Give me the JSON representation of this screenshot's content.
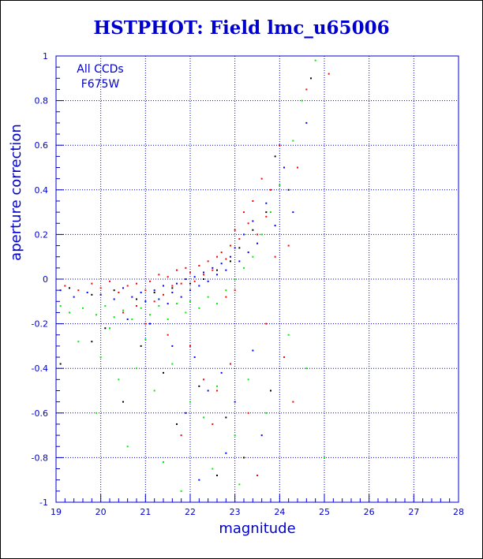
{
  "chart_data": {
    "type": "scatter",
    "title": "HSTPHOT: Field lmc_u65006",
    "xlabel": "magnitude",
    "ylabel": "aperture correction",
    "xlim": [
      19,
      28
    ],
    "ylim": [
      -1,
      1
    ],
    "xticks": [
      "19",
      "20",
      "21",
      "22",
      "23",
      "24",
      "25",
      "26",
      "27",
      "28"
    ],
    "yticks": [
      "-1",
      "-0.8",
      "-0.6",
      "-0.4",
      "-0.2",
      "0",
      "0.2",
      "0.4",
      "0.6",
      "0.8",
      "1"
    ],
    "grid": true,
    "legend": {
      "placement": "top-left",
      "lines": [
        "All CCDs",
        "F675W"
      ]
    },
    "series": [
      {
        "color": "#ff0000",
        "points": [
          [
            19.2,
            -0.03
          ],
          [
            19.5,
            -0.05
          ],
          [
            19.8,
            -0.02
          ],
          [
            20.0,
            -0.04
          ],
          [
            20.2,
            -0.01
          ],
          [
            20.4,
            -0.06
          ],
          [
            20.6,
            -0.03
          ],
          [
            20.8,
            -0.02
          ],
          [
            21.0,
            -0.05
          ],
          [
            21.1,
            -0.01
          ],
          [
            21.3,
            0.02
          ],
          [
            21.4,
            -0.07
          ],
          [
            21.5,
            0.01
          ],
          [
            21.6,
            -0.03
          ],
          [
            21.7,
            0.04
          ],
          [
            21.8,
            -0.02
          ],
          [
            21.9,
            0.05
          ],
          [
            22.0,
            0.03
          ],
          [
            22.1,
            -0.01
          ],
          [
            22.2,
            0.06
          ],
          [
            22.3,
            0.02
          ],
          [
            22.4,
            0.08
          ],
          [
            22.5,
            0.04
          ],
          [
            22.6,
            0.1
          ],
          [
            22.7,
            0.12
          ],
          [
            22.8,
            0.09
          ],
          [
            22.9,
            0.15
          ],
          [
            23.0,
            0.22
          ],
          [
            23.1,
            0.18
          ],
          [
            23.2,
            0.3
          ],
          [
            23.3,
            0.25
          ],
          [
            23.4,
            0.35
          ],
          [
            23.5,
            0.2
          ],
          [
            23.6,
            0.45
          ],
          [
            23.7,
            0.28
          ],
          [
            23.8,
            0.4
          ],
          [
            23.9,
            0.1
          ],
          [
            24.0,
            0.6
          ],
          [
            24.2,
            0.15
          ],
          [
            24.4,
            0.5
          ],
          [
            24.6,
            0.85
          ],
          [
            25.1,
            0.92
          ],
          [
            20.5,
            -0.15
          ],
          [
            21.0,
            -0.2
          ],
          [
            21.5,
            -0.25
          ],
          [
            22.0,
            -0.3
          ],
          [
            22.3,
            -0.45
          ],
          [
            22.6,
            -0.5
          ],
          [
            22.9,
            -0.38
          ],
          [
            23.3,
            -0.6
          ],
          [
            23.7,
            -0.2
          ],
          [
            24.1,
            -0.35
          ],
          [
            21.8,
            -0.7
          ],
          [
            22.5,
            -0.65
          ],
          [
            23.5,
            -0.88
          ],
          [
            24.3,
            -0.55
          ],
          [
            20.8,
            -0.12
          ],
          [
            21.2,
            -0.1
          ],
          [
            22.8,
            -0.08
          ],
          [
            23.0,
            -0.05
          ]
        ]
      },
      {
        "color": "#0000ff",
        "points": [
          [
            19.1,
            -0.05
          ],
          [
            19.4,
            -0.08
          ],
          [
            19.7,
            -0.06
          ],
          [
            20.0,
            -0.07
          ],
          [
            20.3,
            -0.09
          ],
          [
            20.5,
            -0.04
          ],
          [
            20.7,
            -0.08
          ],
          [
            20.9,
            -0.06
          ],
          [
            21.0,
            -0.1
          ],
          [
            21.2,
            -0.05
          ],
          [
            21.3,
            -0.09
          ],
          [
            21.4,
            -0.03
          ],
          [
            21.5,
            -0.11
          ],
          [
            21.6,
            -0.06
          ],
          [
            21.7,
            -0.02
          ],
          [
            21.8,
            -0.08
          ],
          [
            21.9,
            0.0
          ],
          [
            22.0,
            -0.05
          ],
          [
            22.1,
            0.01
          ],
          [
            22.2,
            -0.03
          ],
          [
            22.3,
            0.03
          ],
          [
            22.4,
            -0.01
          ],
          [
            22.5,
            0.05
          ],
          [
            22.6,
            0.02
          ],
          [
            22.7,
            0.07
          ],
          [
            22.8,
            0.04
          ],
          [
            22.9,
            0.1
          ],
          [
            23.0,
            0.14
          ],
          [
            23.1,
            0.08
          ],
          [
            23.2,
            0.2
          ],
          [
            23.3,
            0.12
          ],
          [
            23.4,
            0.26
          ],
          [
            23.5,
            0.16
          ],
          [
            23.7,
            0.34
          ],
          [
            23.9,
            0.24
          ],
          [
            24.1,
            0.5
          ],
          [
            24.3,
            0.3
          ],
          [
            24.6,
            0.7
          ],
          [
            21.1,
            -0.2
          ],
          [
            21.6,
            -0.3
          ],
          [
            22.1,
            -0.35
          ],
          [
            22.4,
            -0.5
          ],
          [
            22.7,
            -0.42
          ],
          [
            23.0,
            -0.55
          ],
          [
            23.4,
            -0.32
          ],
          [
            21.9,
            -0.6
          ],
          [
            22.8,
            -0.78
          ],
          [
            23.6,
            -0.7
          ],
          [
            20.6,
            -0.18
          ],
          [
            22.2,
            -0.9
          ]
        ]
      },
      {
        "color": "#00ee00",
        "points": [
          [
            19.1,
            -0.12
          ],
          [
            19.3,
            -0.15
          ],
          [
            19.6,
            -0.13
          ],
          [
            19.9,
            -0.16
          ],
          [
            20.1,
            -0.12
          ],
          [
            20.3,
            -0.17
          ],
          [
            20.5,
            -0.14
          ],
          [
            20.7,
            -0.18
          ],
          [
            20.9,
            -0.13
          ],
          [
            21.1,
            -0.16
          ],
          [
            21.3,
            -0.12
          ],
          [
            21.5,
            -0.18
          ],
          [
            21.7,
            -0.11
          ],
          [
            21.9,
            -0.15
          ],
          [
            22.0,
            -0.1
          ],
          [
            22.2,
            -0.13
          ],
          [
            22.4,
            -0.08
          ],
          [
            22.6,
            -0.11
          ],
          [
            22.8,
            -0.05
          ],
          [
            23.0,
            0.0
          ],
          [
            23.2,
            0.05
          ],
          [
            23.4,
            0.1
          ],
          [
            23.6,
            0.2
          ],
          [
            23.8,
            0.3
          ],
          [
            24.0,
            0.42
          ],
          [
            24.3,
            0.62
          ],
          [
            24.5,
            0.8
          ],
          [
            24.8,
            0.98
          ],
          [
            19.5,
            -0.28
          ],
          [
            20.0,
            -0.35
          ],
          [
            20.4,
            -0.45
          ],
          [
            20.8,
            -0.4
          ],
          [
            21.2,
            -0.5
          ],
          [
            21.6,
            -0.38
          ],
          [
            22.0,
            -0.55
          ],
          [
            22.3,
            -0.62
          ],
          [
            22.6,
            -0.48
          ],
          [
            23.0,
            -0.7
          ],
          [
            23.3,
            -0.45
          ],
          [
            23.7,
            -0.6
          ],
          [
            24.2,
            -0.25
          ],
          [
            19.9,
            -0.6
          ],
          [
            20.6,
            -0.75
          ],
          [
            21.4,
            -0.82
          ],
          [
            21.8,
            -0.95
          ],
          [
            22.5,
            -0.85
          ],
          [
            23.1,
            -0.92
          ],
          [
            24.6,
            -0.4
          ],
          [
            25.0,
            -0.8
          ],
          [
            20.2,
            -0.22
          ],
          [
            21.0,
            -0.27
          ]
        ]
      },
      {
        "color": "#000000",
        "points": [
          [
            19.3,
            -0.04
          ],
          [
            19.8,
            -0.07
          ],
          [
            20.3,
            -0.05
          ],
          [
            20.8,
            -0.09
          ],
          [
            21.2,
            -0.06
          ],
          [
            21.6,
            -0.04
          ],
          [
            22.0,
            -0.02
          ],
          [
            22.3,
            0.0
          ],
          [
            22.6,
            0.04
          ],
          [
            22.9,
            0.08
          ],
          [
            23.1,
            0.14
          ],
          [
            23.4,
            0.22
          ],
          [
            23.7,
            0.3
          ],
          [
            23.9,
            0.55
          ],
          [
            24.2,
            0.4
          ],
          [
            24.7,
            0.9
          ],
          [
            19.1,
            -0.38
          ],
          [
            19.8,
            -0.28
          ],
          [
            20.1,
            -0.22
          ],
          [
            20.9,
            -0.3
          ],
          [
            21.4,
            -0.42
          ],
          [
            22.2,
            -0.48
          ],
          [
            22.8,
            -0.62
          ],
          [
            23.2,
            -0.8
          ],
          [
            21.7,
            -0.65
          ],
          [
            22.6,
            -0.88
          ],
          [
            23.8,
            -0.5
          ],
          [
            20.5,
            -0.55
          ]
        ]
      }
    ]
  }
}
